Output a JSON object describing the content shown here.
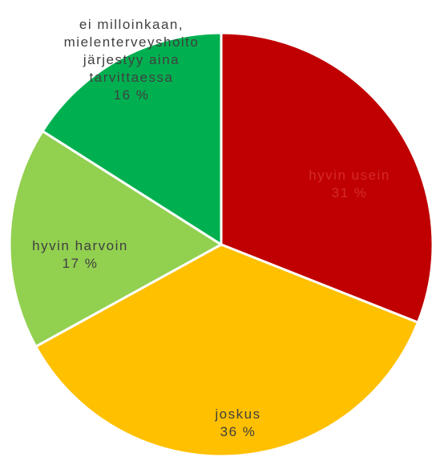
{
  "chart_data": {
    "type": "pie",
    "categories": [
      "hyvin usein",
      "joskus",
      "hyvin harvoin",
      "ei milloinkaan, mielenterveyshoito järjestyy aina tarvittaessa"
    ],
    "values": [
      31,
      36,
      17,
      16
    ],
    "value_labels": [
      "31 %",
      "36 %",
      "17 %",
      "16 %"
    ],
    "colors": [
      "#c00000",
      "#ffc000",
      "#92d050",
      "#00b050"
    ]
  }
}
